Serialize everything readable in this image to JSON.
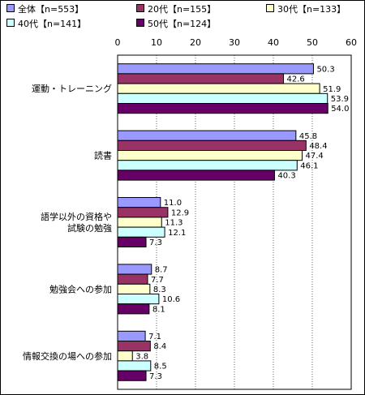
{
  "chart_data": {
    "type": "bar",
    "orientation": "horizontal",
    "xlim": [
      0,
      60
    ],
    "x_ticks": [
      "0",
      "10",
      "20",
      "30",
      "40",
      "50",
      "60"
    ],
    "categories": [
      [
        "運動・トレーニング"
      ],
      [
        "読書"
      ],
      [
        "語学以外の資格や",
        "試験の勉強"
      ],
      [
        "勉強会への参加"
      ],
      [
        "情報交換の場への参加"
      ]
    ],
    "series": [
      {
        "name": "全体【n=553】",
        "color": "#9999FF",
        "values": [
          50.3,
          45.8,
          11.0,
          8.7,
          7.1
        ],
        "labels": [
          "50.3",
          "45.8",
          "11.0",
          "8.7",
          "7.1"
        ]
      },
      {
        "name": "20代【n=155】",
        "color": "#993366",
        "values": [
          42.6,
          48.4,
          12.9,
          7.7,
          8.4
        ],
        "labels": [
          "42.6",
          "48.4",
          "12.9",
          "7.7",
          "8.4"
        ]
      },
      {
        "name": "30代【n=133】",
        "color": "#FFFFCC",
        "values": [
          51.9,
          47.4,
          11.3,
          8.3,
          3.8
        ],
        "labels": [
          "51.9",
          "47.4",
          "11.3",
          "8.3",
          "3.8"
        ]
      },
      {
        "name": "40代【n=141】",
        "color": "#CCFFFF",
        "values": [
          53.9,
          46.1,
          12.1,
          10.6,
          8.5
        ],
        "labels": [
          "53.9",
          "46.1",
          "12.1",
          "10.6",
          "8.5"
        ]
      },
      {
        "name": "50代【n=124】",
        "color": "#660066",
        "values": [
          54.0,
          40.3,
          7.3,
          8.1,
          7.3
        ],
        "labels": [
          "54.0",
          "40.3",
          "7.3",
          "8.1",
          "7.3"
        ]
      }
    ],
    "grid": true,
    "legend_position": "top"
  }
}
